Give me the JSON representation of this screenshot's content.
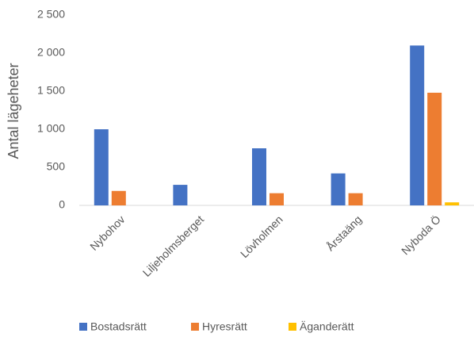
{
  "chart_data": {
    "type": "bar",
    "y_label": "Antal lägeheter",
    "categories": [
      "Nybohov",
      "Liljeholmsberget",
      "Lövholmen",
      "Årstaäng",
      "Nyboda Ö"
    ],
    "series": [
      {
        "name": "Bostadsrätt",
        "color": "#4472c4",
        "values": [
          1000,
          270,
          750,
          420,
          2100
        ]
      },
      {
        "name": "Hyresrätt",
        "color": "#ed7d31",
        "values": [
          190,
          0,
          160,
          160,
          1480
        ]
      },
      {
        "name": "Äganderätt",
        "color": "#ffc000",
        "values": [
          0,
          0,
          0,
          0,
          40
        ]
      }
    ],
    "ylim": [
      0,
      2500
    ],
    "yticks": [
      0,
      500,
      {
        "value": 1000,
        "label": "1 000"
      },
      {
        "value": 1500,
        "label": "1 500"
      },
      {
        "value": 2000,
        "label": "2 000"
      },
      {
        "value": 2500,
        "label": "2 500"
      }
    ],
    "legend": "bottom"
  }
}
